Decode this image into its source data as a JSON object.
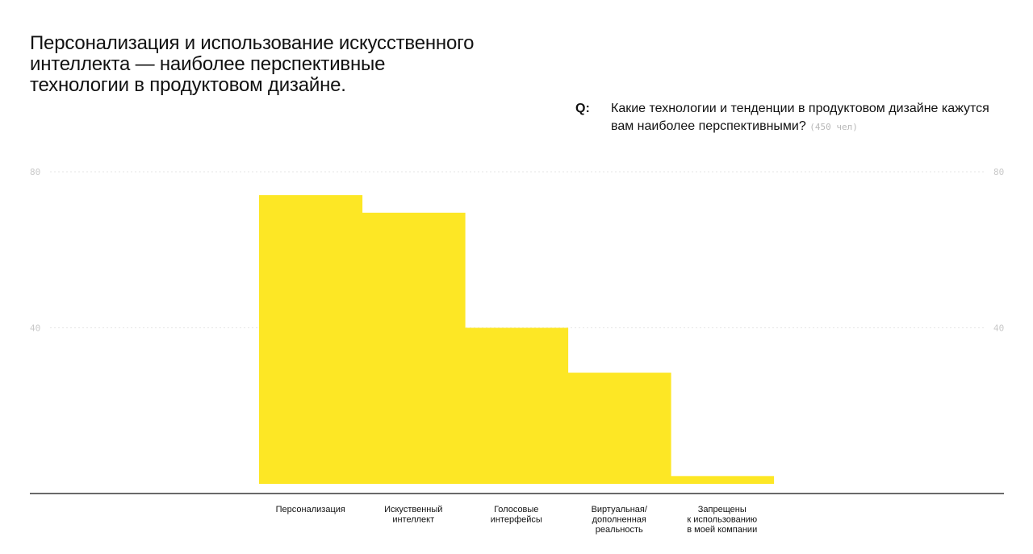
{
  "header": {
    "title": "Персонализация и использование искусственного интеллекта — наиболее перспективные технологии в продуктовом дизайне."
  },
  "question": {
    "marker": "Q:",
    "text": "Какие технологии и тенденции в продуктовом дизайне кажутся вам наиболее перспективными?",
    "note": "(450 чел)"
  },
  "colors": {
    "bar": "#FDE725",
    "axis": "#111111",
    "grid": "#e6e6e6",
    "tick": "#c9c9c9"
  },
  "chart_data": {
    "type": "bar",
    "categories": [
      [
        "Персонализация"
      ],
      [
        "Искуственный",
        "интеллект"
      ],
      [
        "Голосовые",
        "интерфейсы"
      ],
      [
        "Виртуальная/",
        "дополненная",
        "реальность"
      ],
      [
        "Запрещены",
        "к использованию",
        "в моей компании"
      ]
    ],
    "values": [
      74,
      69.5,
      40,
      28.5,
      2
    ],
    "ylim": [
      0,
      80
    ],
    "yticks": [
      40,
      80
    ],
    "grid": true
  }
}
